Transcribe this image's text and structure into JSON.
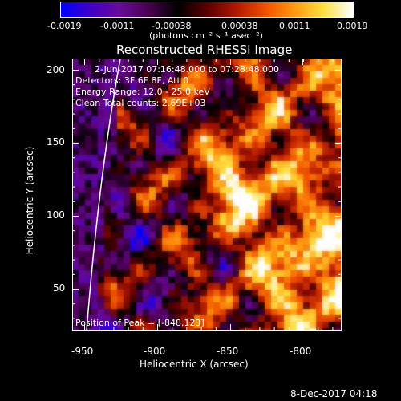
{
  "colorbar": {
    "tick_labels": [
      "-0.0019",
      "-0.0011",
      "-0.00038",
      "0.00038",
      "0.0011",
      "0.0019"
    ],
    "units_label": "(photons cm⁻² s⁻¹ asec⁻²)",
    "colors": [
      "#0000ff",
      "#4000c8",
      "#6a0a9a",
      "#4a0050",
      "#000000",
      "#5a0000",
      "#b01800",
      "#f05000",
      "#ff9a10",
      "#ffe040",
      "#ffffff"
    ]
  },
  "plot": {
    "title": "Reconstructed RHESSI Image",
    "xlabel": "Heliocentric X (arcsec)",
    "ylabel": "Heliocentric Y (arcsec)",
    "x_ticks": [
      "-950",
      "-900",
      "-850",
      "-800"
    ],
    "y_ticks": [
      "200",
      "150",
      "100",
      "50"
    ],
    "info_lines": [
      "2-Jun-2017 07:16:48.000 to 07:28:48.000",
      "Detectors: 3F 6F 8F, Att 0",
      "Energy Range: 12.0 - 25.0 keV",
      "Clean    Total counts: 2.69E+03"
    ],
    "peak_text": "Position of Peak = [-848,123]",
    "limb_color": "#ffffff"
  },
  "footer": {
    "timestamp": "8-Dec-2017 04:18"
  }
}
